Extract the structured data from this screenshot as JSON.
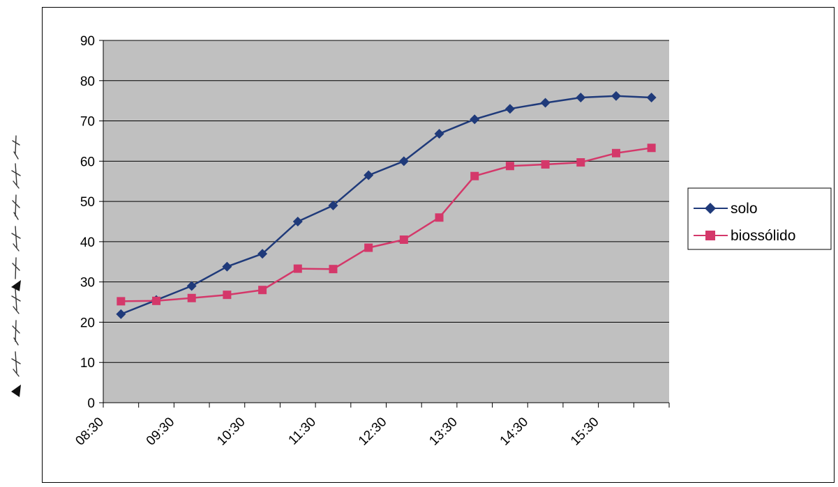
{
  "chart_data": {
    "type": "line",
    "title": "",
    "xlabel": "",
    "ylabel": "",
    "ylim": [
      0,
      90
    ],
    "yticks": [
      0,
      10,
      20,
      30,
      40,
      50,
      60,
      70,
      80,
      90
    ],
    "x_tick_labels": [
      "08:30",
      "09:30",
      "10:30",
      "11:30",
      "12:30",
      "13:30",
      "14:30",
      "15:30"
    ],
    "x": [
      "08:45",
      "09:15",
      "09:45",
      "10:15",
      "10:45",
      "11:15",
      "11:45",
      "12:15",
      "12:45",
      "13:15",
      "13:45",
      "14:15",
      "14:45",
      "15:15",
      "15:45",
      "16:15"
    ],
    "series": [
      {
        "name": "solo",
        "color": "#1F3A7A",
        "marker": "diamond",
        "values": [
          22,
          25.5,
          29,
          33.8,
          37,
          45,
          49,
          56.5,
          60,
          66.8,
          70.4,
          73,
          74.5,
          75.8,
          76.2,
          75.8
        ]
      },
      {
        "name": "biossólido",
        "color": "#D4386A",
        "marker": "square",
        "values": [
          25.2,
          25.3,
          26,
          26.8,
          28,
          33.3,
          33.2,
          38.5,
          40.5,
          46,
          56.3,
          58.8,
          59.2,
          59.7,
          62,
          63.3
        ]
      }
    ],
    "grid": true,
    "legend": "right",
    "plot_background": "#C0C0C0"
  }
}
